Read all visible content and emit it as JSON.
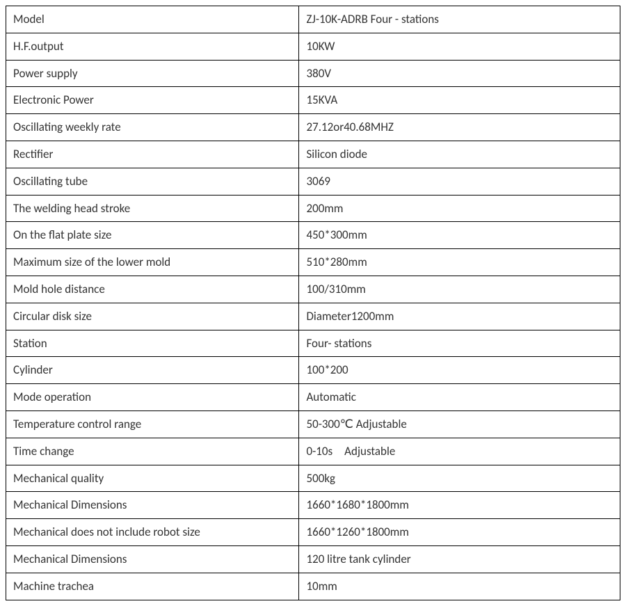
{
  "table": {
    "border_color": "#000000",
    "background_color": "#ffffff",
    "text_color": "#333333",
    "font_size": 17,
    "cell_padding": "7px 10px",
    "col1_width": 422,
    "col2_width": 462,
    "rows": [
      {
        "label": "Model",
        "value": "ZJ-10K-ADRB Four - stations"
      },
      {
        "label": "H.F.output",
        "value": "10KW"
      },
      {
        "label": "Power supply",
        "value": "380V"
      },
      {
        "label": "Electronic Power",
        "value": "15KVA"
      },
      {
        "label": "Oscillating weekly rate",
        "value": "27.12or40.68MHZ"
      },
      {
        "label": "Rectifier",
        "value": "Silicon diode"
      },
      {
        "label": "Oscillating tube",
        "value": "3069"
      },
      {
        "label": "The welding head stroke",
        "value": "200mm"
      },
      {
        "label": "On the flat plate size",
        "value": "450*300mm"
      },
      {
        "label": "Maximum size of the lower mold",
        "value": "510*280mm"
      },
      {
        "label": "Mold hole distance",
        "value": "100/310mm"
      },
      {
        "label": "Circular disk size",
        "value": "Diameter1200mm"
      },
      {
        "label": "Station",
        "value": "Four- stations"
      },
      {
        "label": "Cylinder",
        "value": "100*200"
      },
      {
        "label": "Mode operation",
        "value": "Automatic"
      },
      {
        "label": "Temperature control range",
        "value": "50-300℃ Adjustable"
      },
      {
        "label": "Time change",
        "value": "0-10s Adjustable"
      },
      {
        "label": "Mechanical quality",
        "value": "500kg"
      },
      {
        "label": "Mechanical Dimensions",
        "value": "1660*1680*1800mm"
      },
      {
        "label": "Mechanical does not include robot size",
        "value": "1660*1260*1800mm"
      },
      {
        "label": "Mechanical Dimensions",
        "value": "120 litre tank cylinder"
      },
      {
        "label": "Machine trachea",
        "value": "10mm"
      }
    ]
  }
}
